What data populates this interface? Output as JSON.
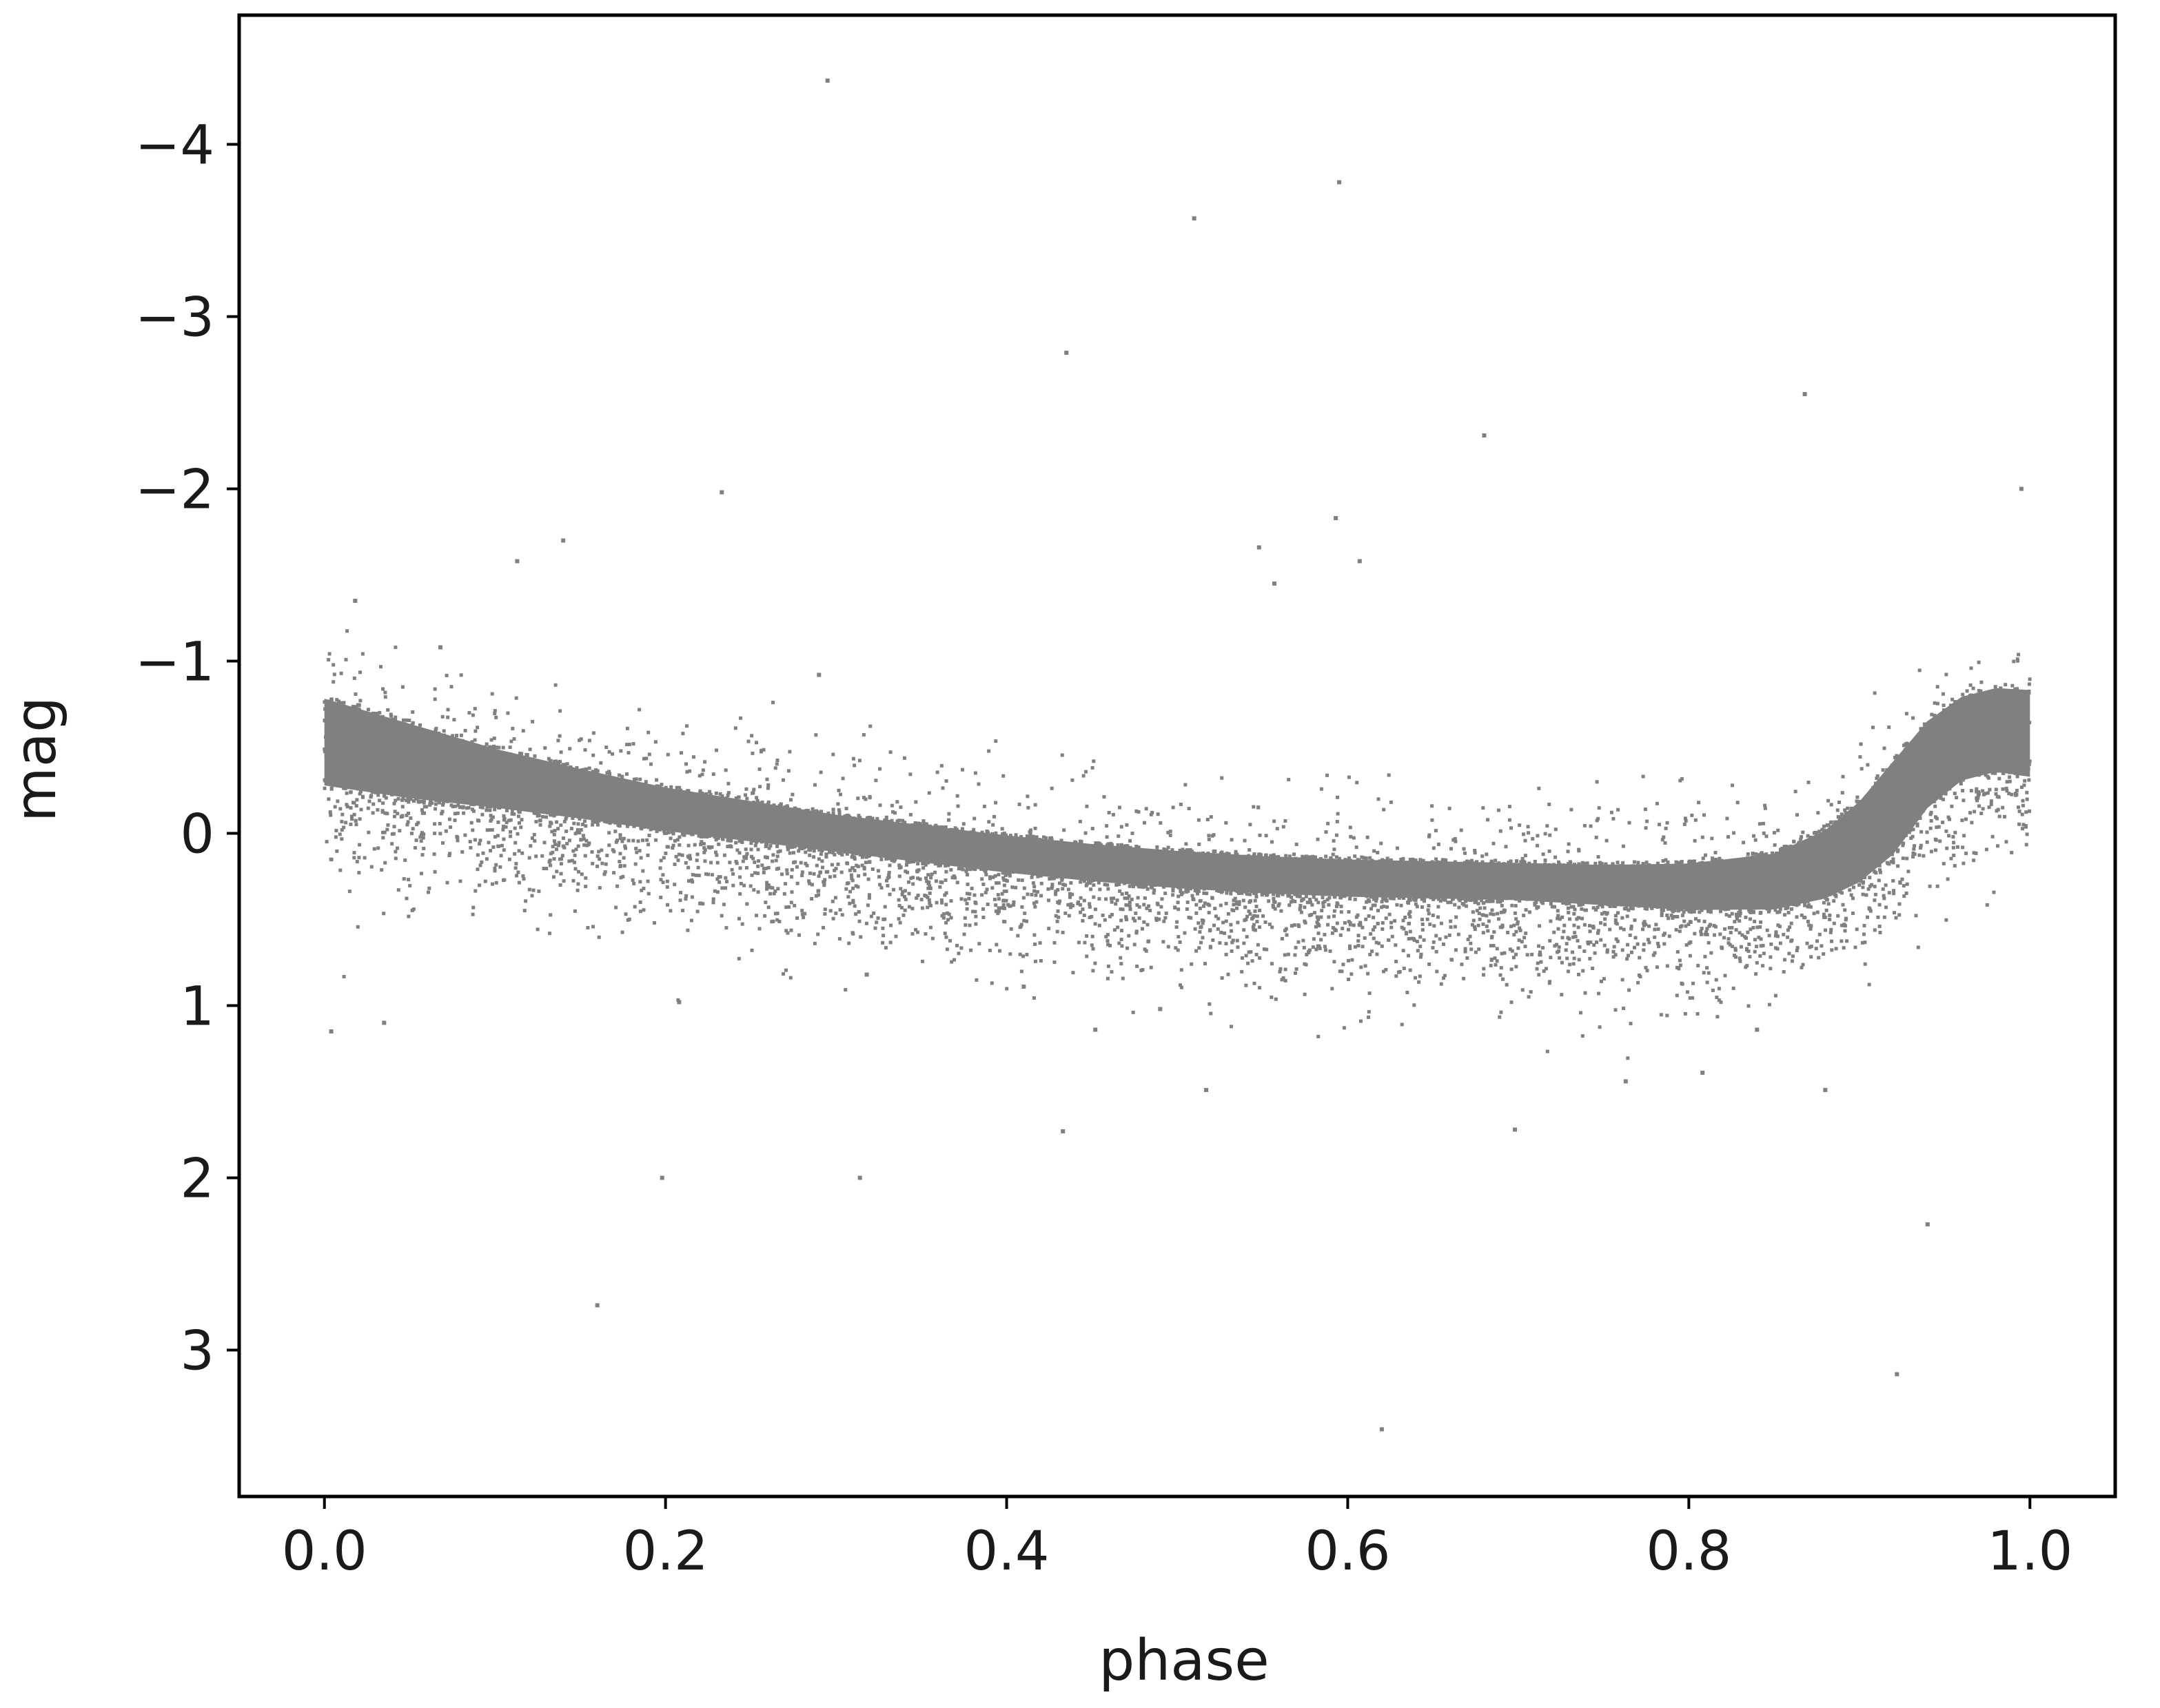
{
  "chart_data": {
    "type": "scatter",
    "title": "",
    "xlabel": "phase",
    "ylabel": "mag",
    "xlim": [
      -0.05,
      1.05
    ],
    "ylim": [
      3.85,
      -4.75
    ],
    "y_inverted": true,
    "grid": false,
    "legend": "none",
    "xticks": [
      0.0,
      0.2,
      0.4,
      0.6,
      0.8,
      1.0
    ],
    "xtick_labels": [
      "0.0",
      "0.2",
      "0.4",
      "0.6",
      "0.8",
      "1.0"
    ],
    "yticks": [
      -4,
      -3,
      -2,
      -1,
      0,
      1,
      2,
      3
    ],
    "ytick_labels": [
      "−4",
      "−3",
      "−2",
      "−1",
      "0",
      "1",
      "2",
      "3"
    ],
    "point_color": "#808080",
    "series": [
      {
        "description_points": "phase-folded light curve (sampled band center and half-width)",
        "phase": [
          0.0,
          0.05,
          0.1,
          0.15,
          0.2,
          0.25,
          0.3,
          0.35,
          0.4,
          0.45,
          0.5,
          0.55,
          0.6,
          0.65,
          0.7,
          0.75,
          0.8,
          0.85,
          0.88,
          0.9,
          0.92,
          0.94,
          0.96,
          0.98,
          1.0
        ],
        "mag_center": [
          -0.53,
          -0.42,
          -0.32,
          -0.23,
          -0.14,
          -0.07,
          0.0,
          0.06,
          0.12,
          0.17,
          0.21,
          0.24,
          0.26,
          0.27,
          0.28,
          0.3,
          0.31,
          0.28,
          0.18,
          0.05,
          -0.15,
          -0.4,
          -0.55,
          -0.6,
          -0.58
        ],
        "mag_halfwidth": [
          0.28,
          0.24,
          0.19,
          0.16,
          0.14,
          0.13,
          0.12,
          0.12,
          0.12,
          0.12,
          0.12,
          0.12,
          0.12,
          0.12,
          0.12,
          0.13,
          0.15,
          0.18,
          0.22,
          0.26,
          0.3,
          0.28,
          0.27,
          0.27,
          0.28
        ]
      }
    ],
    "outliers": [
      {
        "phase": 0.295,
        "mag": -4.37
      },
      {
        "phase": 0.595,
        "mag": -3.78
      },
      {
        "phase": 0.51,
        "mag": -3.57
      },
      {
        "phase": 0.435,
        "mag": -2.79
      },
      {
        "phase": 0.868,
        "mag": -2.55
      },
      {
        "phase": 0.68,
        "mag": -2.31
      },
      {
        "phase": 0.233,
        "mag": -1.98
      },
      {
        "phase": 0.995,
        "mag": -2.0
      },
      {
        "phase": 0.593,
        "mag": -1.83
      },
      {
        "phase": 0.14,
        "mag": -1.7
      },
      {
        "phase": 0.548,
        "mag": -1.66
      },
      {
        "phase": 0.607,
        "mag": -1.58
      },
      {
        "phase": 0.113,
        "mag": -1.58
      },
      {
        "phase": 0.557,
        "mag": -1.45
      },
      {
        "phase": 0.018,
        "mag": -1.35
      },
      {
        "phase": 0.068,
        "mag": -1.08
      },
      {
        "phase": 0.29,
        "mag": -0.92
      },
      {
        "phase": 0.004,
        "mag": 1.15
      },
      {
        "phase": 0.035,
        "mag": 1.1
      },
      {
        "phase": 0.208,
        "mag": 0.98
      },
      {
        "phase": 0.318,
        "mag": 0.82
      },
      {
        "phase": 0.41,
        "mag": 0.89
      },
      {
        "phase": 0.452,
        "mag": 1.14
      },
      {
        "phase": 0.49,
        "mag": 1.02
      },
      {
        "phase": 0.517,
        "mag": 1.49
      },
      {
        "phase": 0.433,
        "mag": 1.73
      },
      {
        "phase": 0.198,
        "mag": 2.0
      },
      {
        "phase": 0.314,
        "mag": 2.0
      },
      {
        "phase": 0.698,
        "mag": 1.72
      },
      {
        "phase": 0.763,
        "mag": 1.44
      },
      {
        "phase": 0.808,
        "mag": 1.39
      },
      {
        "phase": 0.88,
        "mag": 1.49
      },
      {
        "phase": 0.16,
        "mag": 2.74
      },
      {
        "phase": 0.62,
        "mag": 3.46
      },
      {
        "phase": 0.94,
        "mag": 2.27
      },
      {
        "phase": 0.922,
        "mag": 3.14
      },
      {
        "phase": 0.84,
        "mag": 1.14
      }
    ]
  }
}
